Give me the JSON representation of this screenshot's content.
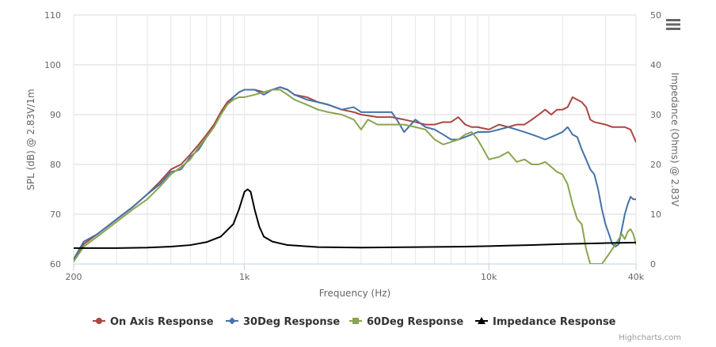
{
  "chart_data": {
    "type": "line",
    "title": "",
    "xlabel": "Frequency (Hz)",
    "ylabel_left": "SPL (dB) @ 2.83V/1m",
    "ylabel_right": "Impedance (Ohms) @ 2.83V",
    "x_scale": "log",
    "xlim": [
      200,
      40000
    ],
    "ylim_left": [
      60,
      110
    ],
    "ylim_right": [
      0,
      50
    ],
    "x_ticks": [
      {
        "value": 200,
        "label": "200"
      },
      {
        "value": 1000,
        "label": "1k"
      },
      {
        "value": 10000,
        "label": "10k"
      },
      {
        "value": 40000,
        "label": "40k"
      }
    ],
    "y_ticks_left": [
      "60",
      "70",
      "80",
      "90",
      "100",
      "110"
    ],
    "y_ticks_right": [
      "0",
      "10",
      "20",
      "30",
      "40",
      "50"
    ],
    "grid": true,
    "legend_position": "bottom",
    "series": [
      {
        "name": "On Axis Response",
        "color": "#aa4643",
        "marker": "circle",
        "axis": "left",
        "points": [
          [
            200,
            61
          ],
          [
            220,
            64
          ],
          [
            250,
            66
          ],
          [
            300,
            69
          ],
          [
            350,
            71.5
          ],
          [
            400,
            74
          ],
          [
            450,
            76.5
          ],
          [
            500,
            79
          ],
          [
            550,
            80
          ],
          [
            600,
            82
          ],
          [
            650,
            84
          ],
          [
            700,
            86
          ],
          [
            750,
            88
          ],
          [
            800,
            90.5
          ],
          [
            850,
            92.5
          ],
          [
            900,
            93.5
          ],
          [
            950,
            94.5
          ],
          [
            1000,
            95
          ],
          [
            1100,
            95
          ],
          [
            1200,
            94.5
          ],
          [
            1300,
            95
          ],
          [
            1400,
            95.5
          ],
          [
            1500,
            95
          ],
          [
            1600,
            94
          ],
          [
            1800,
            93.5
          ],
          [
            2000,
            92.5
          ],
          [
            2200,
            92
          ],
          [
            2500,
            91
          ],
          [
            2800,
            90.5
          ],
          [
            3000,
            90
          ],
          [
            3500,
            89.5
          ],
          [
            4000,
            89.5
          ],
          [
            4500,
            89
          ],
          [
            5000,
            88.5
          ],
          [
            5500,
            88
          ],
          [
            6000,
            88
          ],
          [
            6500,
            88.5
          ],
          [
            7000,
            88.5
          ],
          [
            7500,
            89.5
          ],
          [
            8000,
            88
          ],
          [
            8500,
            87.5
          ],
          [
            9000,
            87.5
          ],
          [
            10000,
            87
          ],
          [
            11000,
            88
          ],
          [
            12000,
            87.5
          ],
          [
            13000,
            88
          ],
          [
            14000,
            88
          ],
          [
            15000,
            89
          ],
          [
            16000,
            90
          ],
          [
            17000,
            91
          ],
          [
            18000,
            90
          ],
          [
            19000,
            91
          ],
          [
            20000,
            91
          ],
          [
            21000,
            91.5
          ],
          [
            22000,
            93.5
          ],
          [
            23000,
            93
          ],
          [
            24000,
            92.5
          ],
          [
            25000,
            91.5
          ],
          [
            26000,
            89
          ],
          [
            27000,
            88.5
          ],
          [
            30000,
            88
          ],
          [
            32000,
            87.5
          ],
          [
            34000,
            87.5
          ],
          [
            36000,
            87.5
          ],
          [
            38000,
            87
          ],
          [
            40000,
            84.5
          ]
        ]
      },
      {
        "name": "30Deg Response",
        "color": "#4572a7",
        "marker": "diamond",
        "axis": "left",
        "points": [
          [
            200,
            61
          ],
          [
            220,
            64.5
          ],
          [
            250,
            66
          ],
          [
            300,
            69
          ],
          [
            350,
            71.5
          ],
          [
            400,
            74
          ],
          [
            450,
            76
          ],
          [
            500,
            78.5
          ],
          [
            550,
            79
          ],
          [
            600,
            81.5
          ],
          [
            650,
            83
          ],
          [
            700,
            85.5
          ],
          [
            750,
            87.5
          ],
          [
            800,
            90
          ],
          [
            850,
            92
          ],
          [
            900,
            93.5
          ],
          [
            950,
            94.5
          ],
          [
            1000,
            95
          ],
          [
            1100,
            95
          ],
          [
            1200,
            94
          ],
          [
            1300,
            95
          ],
          [
            1400,
            95.5
          ],
          [
            1500,
            95
          ],
          [
            1600,
            94
          ],
          [
            1800,
            93
          ],
          [
            2000,
            92.5
          ],
          [
            2200,
            92
          ],
          [
            2500,
            91
          ],
          [
            2800,
            91.5
          ],
          [
            3000,
            90.5
          ],
          [
            3500,
            90.5
          ],
          [
            4000,
            90.5
          ],
          [
            4200,
            89
          ],
          [
            4500,
            86.5
          ],
          [
            5000,
            89
          ],
          [
            5500,
            87.5
          ],
          [
            6000,
            87
          ],
          [
            6500,
            86
          ],
          [
            7000,
            85
          ],
          [
            7500,
            85
          ],
          [
            8000,
            85.5
          ],
          [
            8500,
            86
          ],
          [
            9000,
            86.5
          ],
          [
            10000,
            86.5
          ],
          [
            11000,
            87
          ],
          [
            12000,
            87.5
          ],
          [
            13000,
            87
          ],
          [
            14000,
            86.5
          ],
          [
            15000,
            86
          ],
          [
            16000,
            85.5
          ],
          [
            17000,
            85
          ],
          [
            18000,
            85.5
          ],
          [
            19000,
            86
          ],
          [
            20000,
            86.5
          ],
          [
            21000,
            87.5
          ],
          [
            22000,
            86
          ],
          [
            23000,
            85.5
          ],
          [
            24000,
            83
          ],
          [
            25000,
            81
          ],
          [
            26000,
            79
          ],
          [
            27000,
            78
          ],
          [
            28000,
            75
          ],
          [
            29000,
            71
          ],
          [
            30000,
            68
          ],
          [
            31000,
            66
          ],
          [
            32000,
            64
          ],
          [
            33000,
            63.5
          ],
          [
            34000,
            64
          ],
          [
            35000,
            67
          ],
          [
            36000,
            70
          ],
          [
            37000,
            72
          ],
          [
            38000,
            73.5
          ],
          [
            39000,
            73
          ],
          [
            40000,
            73
          ]
        ]
      },
      {
        "name": "60Deg Response",
        "color": "#89a54e",
        "marker": "square",
        "axis": "left",
        "points": [
          [
            200,
            60.5
          ],
          [
            220,
            63.5
          ],
          [
            250,
            65.5
          ],
          [
            300,
            68.5
          ],
          [
            350,
            71
          ],
          [
            400,
            73
          ],
          [
            450,
            75.5
          ],
          [
            500,
            78
          ],
          [
            550,
            79.5
          ],
          [
            600,
            81
          ],
          [
            650,
            83.5
          ],
          [
            700,
            85.5
          ],
          [
            750,
            87.5
          ],
          [
            800,
            90
          ],
          [
            850,
            92
          ],
          [
            900,
            93
          ],
          [
            950,
            93.5
          ],
          [
            1000,
            93.5
          ],
          [
            1100,
            94
          ],
          [
            1200,
            94.5
          ],
          [
            1300,
            95
          ],
          [
            1400,
            95
          ],
          [
            1500,
            94
          ],
          [
            1600,
            93
          ],
          [
            1800,
            92
          ],
          [
            2000,
            91
          ],
          [
            2200,
            90.5
          ],
          [
            2500,
            90
          ],
          [
            2800,
            89
          ],
          [
            3000,
            87
          ],
          [
            3200,
            89
          ],
          [
            3500,
            88
          ],
          [
            4000,
            88
          ],
          [
            4500,
            88
          ],
          [
            5000,
            87.5
          ],
          [
            5500,
            87
          ],
          [
            6000,
            85
          ],
          [
            6500,
            84
          ],
          [
            7000,
            84.5
          ],
          [
            7500,
            85
          ],
          [
            8000,
            86
          ],
          [
            8500,
            86.5
          ],
          [
            9000,
            85
          ],
          [
            9500,
            83
          ],
          [
            10000,
            81
          ],
          [
            11000,
            81.5
          ],
          [
            12000,
            82.5
          ],
          [
            13000,
            80.5
          ],
          [
            14000,
            81
          ],
          [
            15000,
            80
          ],
          [
            16000,
            80
          ],
          [
            17000,
            80.5
          ],
          [
            18000,
            79.5
          ],
          [
            19000,
            78.5
          ],
          [
            20000,
            78
          ],
          [
            21000,
            76
          ],
          [
            22000,
            72
          ],
          [
            23000,
            69
          ],
          [
            24000,
            68
          ],
          [
            25000,
            63
          ],
          [
            26000,
            60
          ],
          [
            27000,
            60
          ],
          [
            28000,
            60
          ],
          [
            29000,
            60
          ],
          [
            30000,
            61
          ],
          [
            31000,
            62
          ],
          [
            32000,
            63
          ],
          [
            33000,
            64
          ],
          [
            34000,
            65
          ],
          [
            35000,
            66
          ],
          [
            36000,
            65
          ],
          [
            37000,
            66.5
          ],
          [
            38000,
            67
          ],
          [
            39000,
            66
          ],
          [
            40000,
            64
          ]
        ]
      },
      {
        "name": "Impedance Response",
        "color": "#000000",
        "marker": "triangle",
        "axis": "right",
        "points": [
          [
            200,
            3.2
          ],
          [
            300,
            3.2
          ],
          [
            400,
            3.3
          ],
          [
            500,
            3.5
          ],
          [
            600,
            3.8
          ],
          [
            700,
            4.4
          ],
          [
            800,
            5.5
          ],
          [
            900,
            8
          ],
          [
            950,
            11
          ],
          [
            1000,
            14.5
          ],
          [
            1030,
            15
          ],
          [
            1060,
            14.5
          ],
          [
            1100,
            11
          ],
          [
            1150,
            7.5
          ],
          [
            1200,
            5.5
          ],
          [
            1300,
            4.5
          ],
          [
            1500,
            3.8
          ],
          [
            2000,
            3.4
          ],
          [
            3000,
            3.3
          ],
          [
            5000,
            3.4
          ],
          [
            8000,
            3.5
          ],
          [
            10000,
            3.6
          ],
          [
            15000,
            3.8
          ],
          [
            20000,
            4
          ],
          [
            30000,
            4.2
          ],
          [
            40000,
            4.3
          ]
        ]
      }
    ]
  },
  "credits": "Highcharts.com"
}
